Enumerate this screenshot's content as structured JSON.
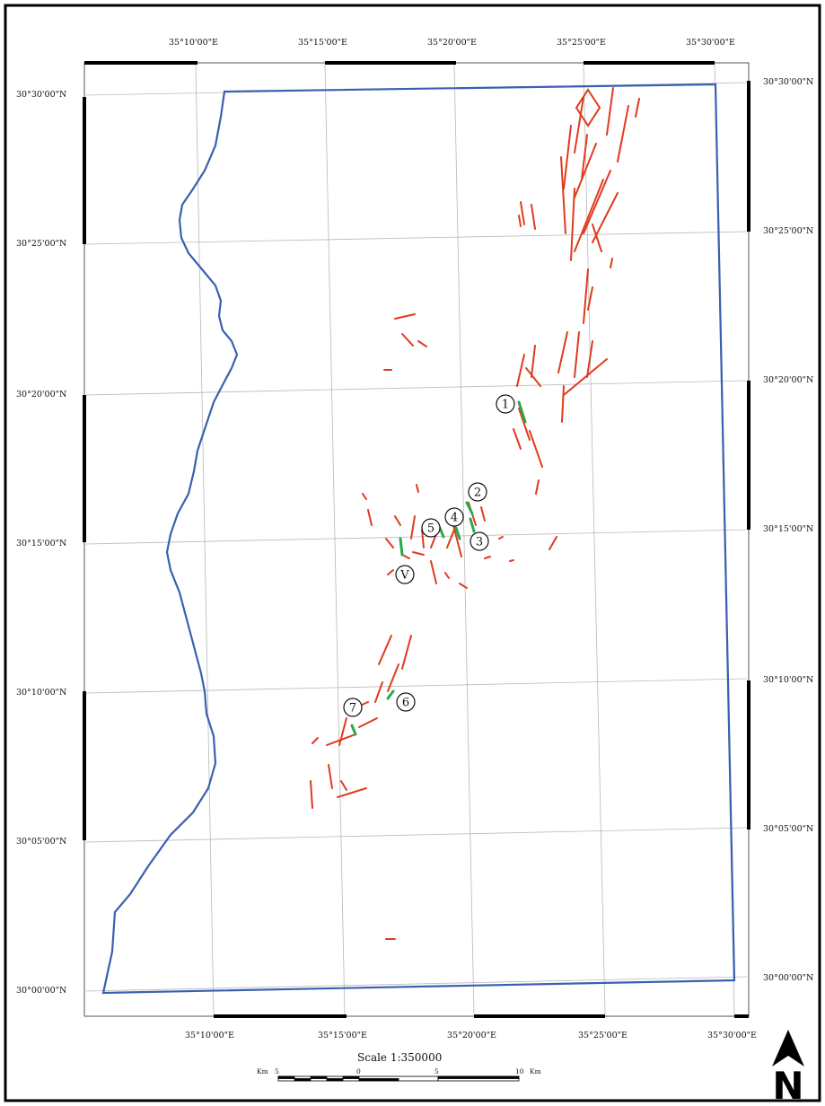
{
  "map": {
    "lat_labels": [
      "30°30'00\"N",
      "30°25'00\"N",
      "30°20'00\"N",
      "30°15'00\"N",
      "30°10'00\"N",
      "30°05'00\"N",
      "30°00'00\"N"
    ],
    "lon_labels": [
      "35°10'00\"E",
      "35°15'00\"E",
      "35°20'00\"E",
      "35°25'00\"E",
      "35°30'00\"E"
    ],
    "scale": {
      "title": "Scale 1:350000",
      "left_unit": "Km",
      "ticks": [
        "5",
        "0",
        "5",
        "10"
      ],
      "right_unit": "Km"
    },
    "north_label": "N",
    "site_markers": [
      "1",
      "2",
      "3",
      "4",
      "5",
      "V",
      "6",
      "7"
    ],
    "colors": {
      "boundary": "#3a60b0",
      "faults_red": "#e03a1e",
      "sites_green": "#2aa84a",
      "grid": "#b8b8b8",
      "frame": "#000000"
    }
  }
}
